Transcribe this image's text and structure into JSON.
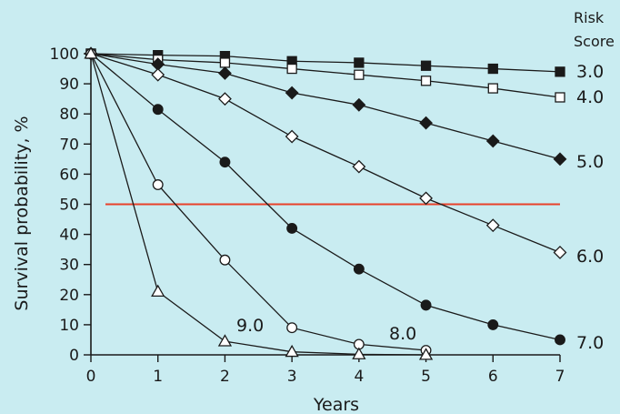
{
  "chart_data": {
    "type": "line",
    "title": "",
    "xlabel": "Years",
    "ylabel": "Survival probability, %",
    "xlim": [
      0,
      7
    ],
    "ylim": [
      0,
      100
    ],
    "x_ticks": [
      0,
      1,
      2,
      3,
      4,
      5,
      6,
      7
    ],
    "y_ticks": [
      0,
      10,
      20,
      30,
      40,
      50,
      60,
      70,
      80,
      90,
      100
    ],
    "grid": false,
    "legend_title": [
      "Risk",
      "Score"
    ],
    "reference_line": {
      "y": 50,
      "label": "50",
      "color": "#e8412a"
    },
    "series": [
      {
        "name": "3.0",
        "marker": "square-filled",
        "x": [
          0,
          1,
          2,
          3,
          4,
          5,
          6,
          7
        ],
        "values": [
          100,
          99.5,
          99.2,
          97.5,
          97,
          96,
          95,
          94
        ]
      },
      {
        "name": "4.0",
        "marker": "square-open",
        "x": [
          0,
          1,
          2,
          3,
          4,
          5,
          6,
          7
        ],
        "values": [
          100,
          98,
          97,
          95,
          93,
          91,
          88.5,
          85.5
        ]
      },
      {
        "name": "5.0",
        "marker": "diamond-filled",
        "x": [
          0,
          1,
          2,
          3,
          4,
          5,
          6,
          7
        ],
        "values": [
          100,
          96.5,
          93.5,
          87,
          83,
          77,
          71,
          65
        ]
      },
      {
        "name": "6.0",
        "marker": "diamond-open",
        "x": [
          0,
          1,
          2,
          3,
          4,
          5,
          6,
          7
        ],
        "values": [
          100,
          93,
          85,
          72.5,
          62.5,
          52,
          43,
          34
        ]
      },
      {
        "name": "7.0",
        "marker": "circle-filled",
        "x": [
          0,
          1,
          2,
          3,
          4,
          5,
          6,
          7
        ],
        "values": [
          100,
          81.5,
          64,
          42,
          28.5,
          16.5,
          10,
          5
        ]
      },
      {
        "name": "8.0",
        "marker": "circle-open",
        "x": [
          0,
          1,
          2,
          3,
          4,
          5
        ],
        "values": [
          100,
          56.5,
          31.5,
          9,
          3.5,
          1.5
        ]
      },
      {
        "name": "9.0",
        "marker": "triangle-open",
        "x": [
          0,
          1,
          2,
          3,
          4,
          5
        ],
        "values": [
          100,
          21,
          4.5,
          1,
          0.2,
          0
        ]
      }
    ]
  },
  "colors": {
    "background": "#c9ecf1",
    "ink": "#1a1a1a",
    "reference": "#e8412a"
  }
}
